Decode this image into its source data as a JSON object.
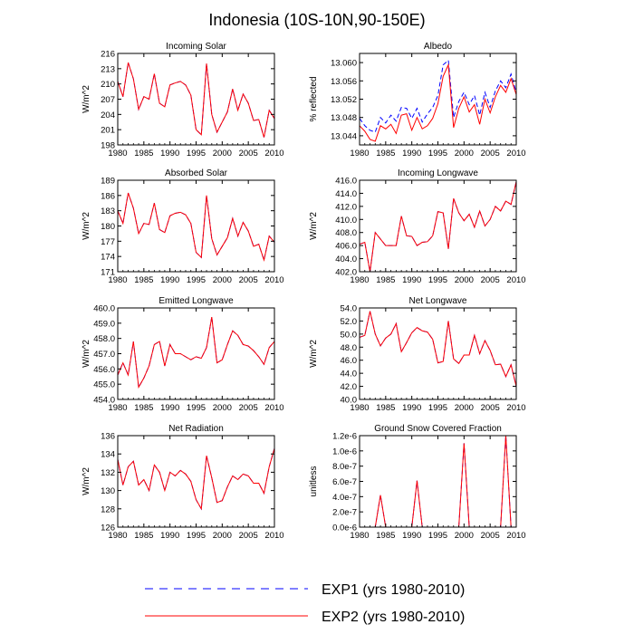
{
  "title": "Indonesia (10S-10N,90-150E)",
  "legend": {
    "placement": "bottom",
    "entries": [
      {
        "label": "EXP1 (yrs 1980-2010)",
        "color": "#0000ff",
        "dash": "dashed"
      },
      {
        "label": "EXP2 (yrs 1980-2010)",
        "color": "#ff0000",
        "dash": "solid"
      }
    ]
  },
  "chart_data": [
    {
      "type": "line",
      "title": "Incoming Solar",
      "ylabel": "W/m^2",
      "xlim": [
        1980,
        2010
      ],
      "ylim": [
        198,
        216
      ],
      "xticks": [
        "1980",
        "1985",
        "1990",
        "1995",
        "2000",
        "2005",
        "2010"
      ],
      "yticks": [
        "198",
        "201",
        "204",
        "207",
        "210",
        "213",
        "216"
      ],
      "x": [
        1980,
        1981,
        1982,
        1983,
        1984,
        1985,
        1986,
        1987,
        1988,
        1989,
        1990,
        1991,
        1992,
        1993,
        1994,
        1995,
        1996,
        1997,
        1998,
        1999,
        2000,
        2001,
        2002,
        2003,
        2004,
        2005,
        2006,
        2007,
        2008,
        2009,
        2010
      ],
      "series": [
        {
          "name": "EXP1 (yrs 1980-2010)",
          "values": [
            210.5,
            207.5,
            214.2,
            211.0,
            205.0,
            207.5,
            207.0,
            212.0,
            206.2,
            205.5,
            209.8,
            210.2,
            210.5,
            209.8,
            207.8,
            201.0,
            200.0,
            214.0,
            204.0,
            200.5,
            202.5,
            204.5,
            209.0,
            204.8,
            208.0,
            206.2,
            202.8,
            203.0,
            199.5,
            204.8,
            203.2
          ]
        },
        {
          "name": "EXP2 (yrs 1980-2010)",
          "values": [
            210.5,
            207.5,
            214.2,
            211.0,
            205.0,
            207.5,
            207.0,
            212.0,
            206.2,
            205.5,
            209.8,
            210.2,
            210.5,
            209.8,
            207.8,
            201.0,
            200.0,
            214.0,
            204.0,
            200.5,
            202.5,
            204.5,
            209.0,
            204.8,
            208.0,
            206.2,
            202.8,
            203.0,
            199.5,
            204.8,
            203.2
          ]
        }
      ]
    },
    {
      "type": "line",
      "title": "Albedo",
      "ylabel": "% reflected",
      "xlim": [
        1980,
        2010
      ],
      "ylim": [
        13.042,
        13.062
      ],
      "xticks": [
        "1980",
        "1985",
        "1990",
        "1995",
        "2000",
        "2005",
        "2010"
      ],
      "yticks": [
        "13.044",
        "13.048",
        "13.052",
        "13.056",
        "13.060"
      ],
      "x": [
        1980,
        1981,
        1982,
        1983,
        1984,
        1985,
        1986,
        1987,
        1988,
        1989,
        1990,
        1991,
        1992,
        1993,
        1994,
        1995,
        1996,
        1997,
        1998,
        1999,
        2000,
        2001,
        2002,
        2003,
        2004,
        2005,
        2006,
        2007,
        2008,
        2009,
        2010
      ],
      "series": [
        {
          "name": "EXP1 (yrs 1980-2010)",
          "values": [
            13.0478,
            13.0462,
            13.0452,
            13.0448,
            13.048,
            13.0468,
            13.0485,
            13.0472,
            13.0502,
            13.05,
            13.0478,
            13.05,
            13.047,
            13.0488,
            13.0502,
            13.0528,
            13.0595,
            13.0605,
            13.048,
            13.0515,
            13.0535,
            13.0508,
            13.0528,
            13.0485,
            13.0535,
            13.0502,
            13.0538,
            13.056,
            13.0545,
            13.0575,
            13.0535
          ]
        },
        {
          "name": "EXP2 (yrs 1980-2010)",
          "values": [
            13.0462,
            13.045,
            13.0432,
            13.0428,
            13.0462,
            13.0455,
            13.0465,
            13.0445,
            13.0485,
            13.0488,
            13.0452,
            13.048,
            13.0455,
            13.0462,
            13.0478,
            13.051,
            13.057,
            13.0595,
            13.0458,
            13.05,
            13.0525,
            13.0492,
            13.0508,
            13.0465,
            13.052,
            13.049,
            13.0525,
            13.055,
            13.0535,
            13.0565,
            13.053
          ]
        }
      ]
    },
    {
      "type": "line",
      "title": "Absorbed Solar",
      "ylabel": "W/m^2",
      "xlim": [
        1980,
        2010
      ],
      "ylim": [
        171,
        189
      ],
      "xticks": [
        "1980",
        "1985",
        "1990",
        "1995",
        "2000",
        "2005",
        "2010"
      ],
      "yticks": [
        "171",
        "174",
        "177",
        "180",
        "183",
        "186",
        "189"
      ],
      "x": [
        1980,
        1981,
        1982,
        1983,
        1984,
        1985,
        1986,
        1987,
        1988,
        1989,
        1990,
        1991,
        1992,
        1993,
        1994,
        1995,
        1996,
        1997,
        1998,
        1999,
        2000,
        2001,
        2002,
        2003,
        2004,
        2005,
        2006,
        2007,
        2008,
        2009,
        2010
      ],
      "series": [
        {
          "name": "EXP1 (yrs 1980-2010)",
          "values": [
            183.0,
            180.5,
            186.5,
            183.5,
            178.5,
            180.5,
            180.3,
            184.5,
            179.3,
            178.7,
            182.0,
            182.5,
            182.7,
            182.2,
            180.5,
            174.8,
            173.8,
            186.0,
            177.5,
            174.3,
            176.0,
            177.7,
            181.5,
            178.0,
            180.7,
            179.0,
            176.0,
            176.4,
            173.3,
            178.0,
            176.8
          ]
        },
        {
          "name": "EXP2 (yrs 1980-2010)",
          "values": [
            183.0,
            180.5,
            186.5,
            183.5,
            178.5,
            180.5,
            180.3,
            184.5,
            179.3,
            178.7,
            182.0,
            182.5,
            182.7,
            182.2,
            180.5,
            174.8,
            173.8,
            186.0,
            177.5,
            174.3,
            176.0,
            177.7,
            181.5,
            178.0,
            180.7,
            179.0,
            176.0,
            176.4,
            173.3,
            178.0,
            176.8
          ]
        }
      ]
    },
    {
      "type": "line",
      "title": "Incoming Longwave",
      "ylabel": "W/m^2",
      "xlim": [
        1980,
        2010
      ],
      "ylim": [
        402.0,
        416.0
      ],
      "xticks": [
        "1980",
        "1985",
        "1990",
        "1995",
        "2000",
        "2005",
        "2010"
      ],
      "yticks": [
        "402.0",
        "404.0",
        "406.0",
        "408.0",
        "410.0",
        "412.0",
        "414.0",
        "416.0"
      ],
      "x": [
        1980,
        1981,
        1982,
        1983,
        1984,
        1985,
        1986,
        1987,
        1988,
        1989,
        1990,
        1991,
        1992,
        1993,
        1994,
        1995,
        1996,
        1997,
        1998,
        1999,
        2000,
        2001,
        2002,
        2003,
        2004,
        2005,
        2006,
        2007,
        2008,
        2009,
        2010
      ],
      "series": [
        {
          "name": "EXP1 (yrs 1980-2010)",
          "values": [
            406.2,
            406.5,
            402.0,
            408.0,
            407.0,
            406.0,
            406.0,
            406.0,
            410.5,
            407.5,
            407.4,
            406.0,
            406.5,
            406.6,
            407.5,
            411.2,
            411.0,
            405.5,
            413.2,
            411.0,
            409.8,
            410.8,
            408.8,
            411.3,
            409.0,
            410.0,
            412.0,
            411.3,
            412.8,
            412.3,
            415.8
          ]
        },
        {
          "name": "EXP2 (yrs 1980-2010)",
          "values": [
            406.2,
            406.5,
            402.0,
            408.0,
            407.0,
            406.0,
            406.0,
            406.0,
            410.5,
            407.5,
            407.4,
            406.0,
            406.5,
            406.6,
            407.5,
            411.2,
            411.0,
            405.5,
            413.2,
            411.0,
            409.8,
            410.8,
            408.8,
            411.3,
            409.0,
            410.0,
            412.0,
            411.3,
            412.8,
            412.3,
            415.8
          ]
        }
      ]
    },
    {
      "type": "line",
      "title": "Emitted Longwave",
      "ylabel": "W/m^2",
      "xlim": [
        1980,
        2010
      ],
      "ylim": [
        454.0,
        460.0
      ],
      "xticks": [
        "1980",
        "1985",
        "1990",
        "1995",
        "2000",
        "2005",
        "2010"
      ],
      "yticks": [
        "454.0",
        "455.0",
        "456.0",
        "457.0",
        "458.0",
        "459.0",
        "460.0"
      ],
      "x": [
        1980,
        1981,
        1982,
        1983,
        1984,
        1985,
        1986,
        1987,
        1988,
        1989,
        1990,
        1991,
        1992,
        1993,
        1994,
        1995,
        1996,
        1997,
        1998,
        1999,
        2000,
        2001,
        2002,
        2003,
        2004,
        2005,
        2006,
        2007,
        2008,
        2009,
        2010
      ],
      "series": [
        {
          "name": "EXP1 (yrs 1980-2010)",
          "values": [
            455.6,
            456.4,
            455.6,
            457.8,
            454.8,
            455.4,
            456.2,
            457.6,
            457.8,
            456.2,
            457.6,
            457.0,
            457.0,
            456.8,
            456.6,
            456.8,
            456.7,
            457.4,
            459.4,
            456.4,
            456.6,
            457.6,
            458.5,
            458.2,
            457.6,
            457.5,
            457.2,
            456.8,
            456.3,
            457.4,
            457.8
          ]
        },
        {
          "name": "EXP2 (yrs 1980-2010)",
          "values": [
            455.6,
            456.4,
            455.6,
            457.8,
            454.8,
            455.4,
            456.2,
            457.6,
            457.8,
            456.2,
            457.6,
            457.0,
            457.0,
            456.8,
            456.6,
            456.8,
            456.7,
            457.4,
            459.4,
            456.4,
            456.6,
            457.6,
            458.5,
            458.2,
            457.6,
            457.5,
            457.2,
            456.8,
            456.3,
            457.4,
            457.8
          ]
        }
      ]
    },
    {
      "type": "line",
      "title": "Net Longwave",
      "ylabel": "W/m^2",
      "xlim": [
        1980,
        2010
      ],
      "ylim": [
        40.0,
        54.0
      ],
      "xticks": [
        "1980",
        "1985",
        "1990",
        "1995",
        "2000",
        "2005",
        "2010"
      ],
      "yticks": [
        "40.0",
        "42.0",
        "44.0",
        "46.0",
        "48.0",
        "50.0",
        "52.0",
        "54.0"
      ],
      "x": [
        1980,
        1981,
        1982,
        1983,
        1984,
        1985,
        1986,
        1987,
        1988,
        1989,
        1990,
        1991,
        1992,
        1993,
        1994,
        1995,
        1996,
        1997,
        1998,
        1999,
        2000,
        2001,
        2002,
        2003,
        2004,
        2005,
        2006,
        2007,
        2008,
        2009,
        2010
      ],
      "series": [
        {
          "name": "EXP1 (yrs 1980-2010)",
          "values": [
            49.5,
            49.8,
            53.5,
            50.0,
            48.2,
            49.4,
            50.0,
            51.6,
            47.3,
            48.7,
            50.2,
            51.0,
            50.5,
            50.3,
            49.2,
            45.6,
            45.8,
            52.0,
            46.2,
            45.5,
            46.8,
            46.8,
            49.8,
            47.0,
            49.0,
            47.5,
            45.3,
            45.4,
            43.5,
            45.3,
            42.0
          ]
        },
        {
          "name": "EXP2 (yrs 1980-2010)",
          "values": [
            49.5,
            49.8,
            53.5,
            50.0,
            48.2,
            49.4,
            50.0,
            51.6,
            47.3,
            48.7,
            50.2,
            51.0,
            50.5,
            50.3,
            49.2,
            45.6,
            45.8,
            52.0,
            46.2,
            45.5,
            46.8,
            46.8,
            49.8,
            47.0,
            49.0,
            47.5,
            45.3,
            45.4,
            43.5,
            45.3,
            42.0
          ]
        }
      ]
    },
    {
      "type": "line",
      "title": "Net Radiation",
      "ylabel": "W/m^2",
      "xlim": [
        1980,
        2010
      ],
      "ylim": [
        126,
        136
      ],
      "xticks": [
        "1980",
        "1985",
        "1990",
        "1995",
        "2000",
        "2005",
        "2010"
      ],
      "yticks": [
        "126",
        "128",
        "130",
        "132",
        "134",
        "136"
      ],
      "x": [
        1980,
        1981,
        1982,
        1983,
        1984,
        1985,
        1986,
        1987,
        1988,
        1989,
        1990,
        1991,
        1992,
        1993,
        1994,
        1995,
        1996,
        1997,
        1998,
        1999,
        2000,
        2001,
        2002,
        2003,
        2004,
        2005,
        2006,
        2007,
        2008,
        2009,
        2010
      ],
      "series": [
        {
          "name": "EXP1 (yrs 1980-2010)",
          "values": [
            133.4,
            130.6,
            132.6,
            133.2,
            130.6,
            131.2,
            130.0,
            132.8,
            132.0,
            130.0,
            132.0,
            131.6,
            132.2,
            131.8,
            131.0,
            129.0,
            128.0,
            133.8,
            131.4,
            128.7,
            128.9,
            130.4,
            131.6,
            131.2,
            131.8,
            131.6,
            130.8,
            130.8,
            129.7,
            132.6,
            134.6
          ]
        },
        {
          "name": "EXP2 (yrs 1980-2010)",
          "values": [
            133.4,
            130.6,
            132.6,
            133.2,
            130.6,
            131.2,
            130.0,
            132.8,
            132.0,
            130.0,
            132.0,
            131.6,
            132.2,
            131.8,
            131.0,
            129.0,
            128.0,
            133.8,
            131.4,
            128.7,
            128.9,
            130.4,
            131.6,
            131.2,
            131.8,
            131.6,
            130.8,
            130.8,
            129.7,
            132.6,
            134.6
          ]
        }
      ]
    },
    {
      "type": "line",
      "title": "Ground Snow Covered Fraction",
      "ylabel": "unitless",
      "xlim": [
        1980,
        2010
      ],
      "ylim": [
        0,
        1.2e-06
      ],
      "xticks": [
        "1980",
        "1985",
        "1990",
        "1995",
        "2000",
        "2005",
        "2010"
      ],
      "yticks": [
        "0.0e-6",
        "2.0e-7",
        "4.0e-7",
        "6.0e-7",
        "8.0e-7",
        "1.0e-6",
        "1.2e-6"
      ],
      "x": [
        1980,
        1981,
        1982,
        1983,
        1984,
        1985,
        1986,
        1987,
        1988,
        1989,
        1990,
        1991,
        1992,
        1993,
        1994,
        1995,
        1996,
        1997,
        1998,
        1999,
        2000,
        2001,
        2002,
        2003,
        2004,
        2005,
        2006,
        2007,
        2008,
        2009,
        2010
      ],
      "series": [
        {
          "name": "EXP1 (yrs 1980-2010)",
          "values": [
            0,
            0,
            0,
            0,
            4.2e-07,
            0,
            0,
            0,
            0,
            0,
            0,
            6.1e-07,
            0,
            0,
            0,
            0,
            0,
            0,
            0,
            0,
            1.1e-06,
            0,
            0,
            0,
            0,
            0,
            0,
            0,
            1.2e-06,
            0,
            0
          ]
        },
        {
          "name": "EXP2 (yrs 1980-2010)",
          "values": [
            0,
            0,
            0,
            0,
            4.2e-07,
            0,
            0,
            0,
            0,
            0,
            0,
            6.1e-07,
            0,
            0,
            0,
            0,
            0,
            0,
            0,
            0,
            1.1e-06,
            0,
            0,
            0,
            0,
            0,
            0,
            0,
            1.2e-06,
            0,
            0
          ]
        }
      ]
    }
  ]
}
